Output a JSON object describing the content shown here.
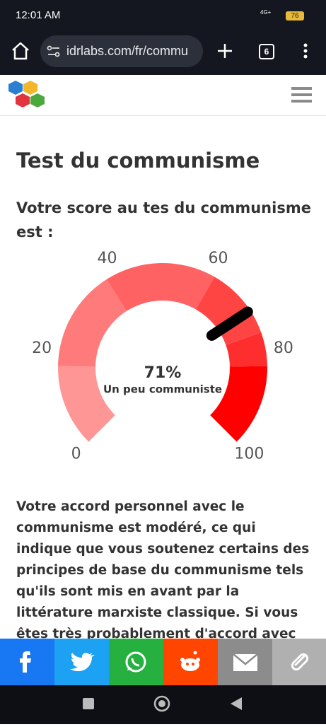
{
  "status_bar": {
    "time": "12:01 AM",
    "network": "4G+",
    "battery": "76"
  },
  "browser": {
    "url": "idrlabs.com/fr/commu",
    "tab_count": "6"
  },
  "page": {
    "title": "Test du communisme",
    "subtitle": "Votre score au tes du communisme est :",
    "paragraph": "Votre accord personnel avec le communisme est modéré, ce qui indique que vous soutenez certains des principes de base du communisme tels qu'ils sont mis en avant par la littérature marxiste classique. Si vous êtes très probablement d'accord avec certaines doctrines"
  },
  "gauge": {
    "min": 0,
    "max": 100,
    "ticks": [
      0,
      20,
      40,
      60,
      80,
      100
    ],
    "value": 71,
    "value_label": "71%",
    "caption": "Un peu communiste",
    "segments": [
      {
        "from": 0,
        "to": 17,
        "color": "#ff9696"
      },
      {
        "from": 17,
        "to": 38,
        "color": "#ff7a7a"
      },
      {
        "from": 38,
        "to": 61,
        "color": "#ff6262"
      },
      {
        "from": 61,
        "to": 76,
        "color": "#ff4444"
      },
      {
        "from": 76,
        "to": 83,
        "color": "#ff2e2e"
      },
      {
        "from": 83,
        "to": 100,
        "color": "#ff0000"
      }
    ]
  }
}
